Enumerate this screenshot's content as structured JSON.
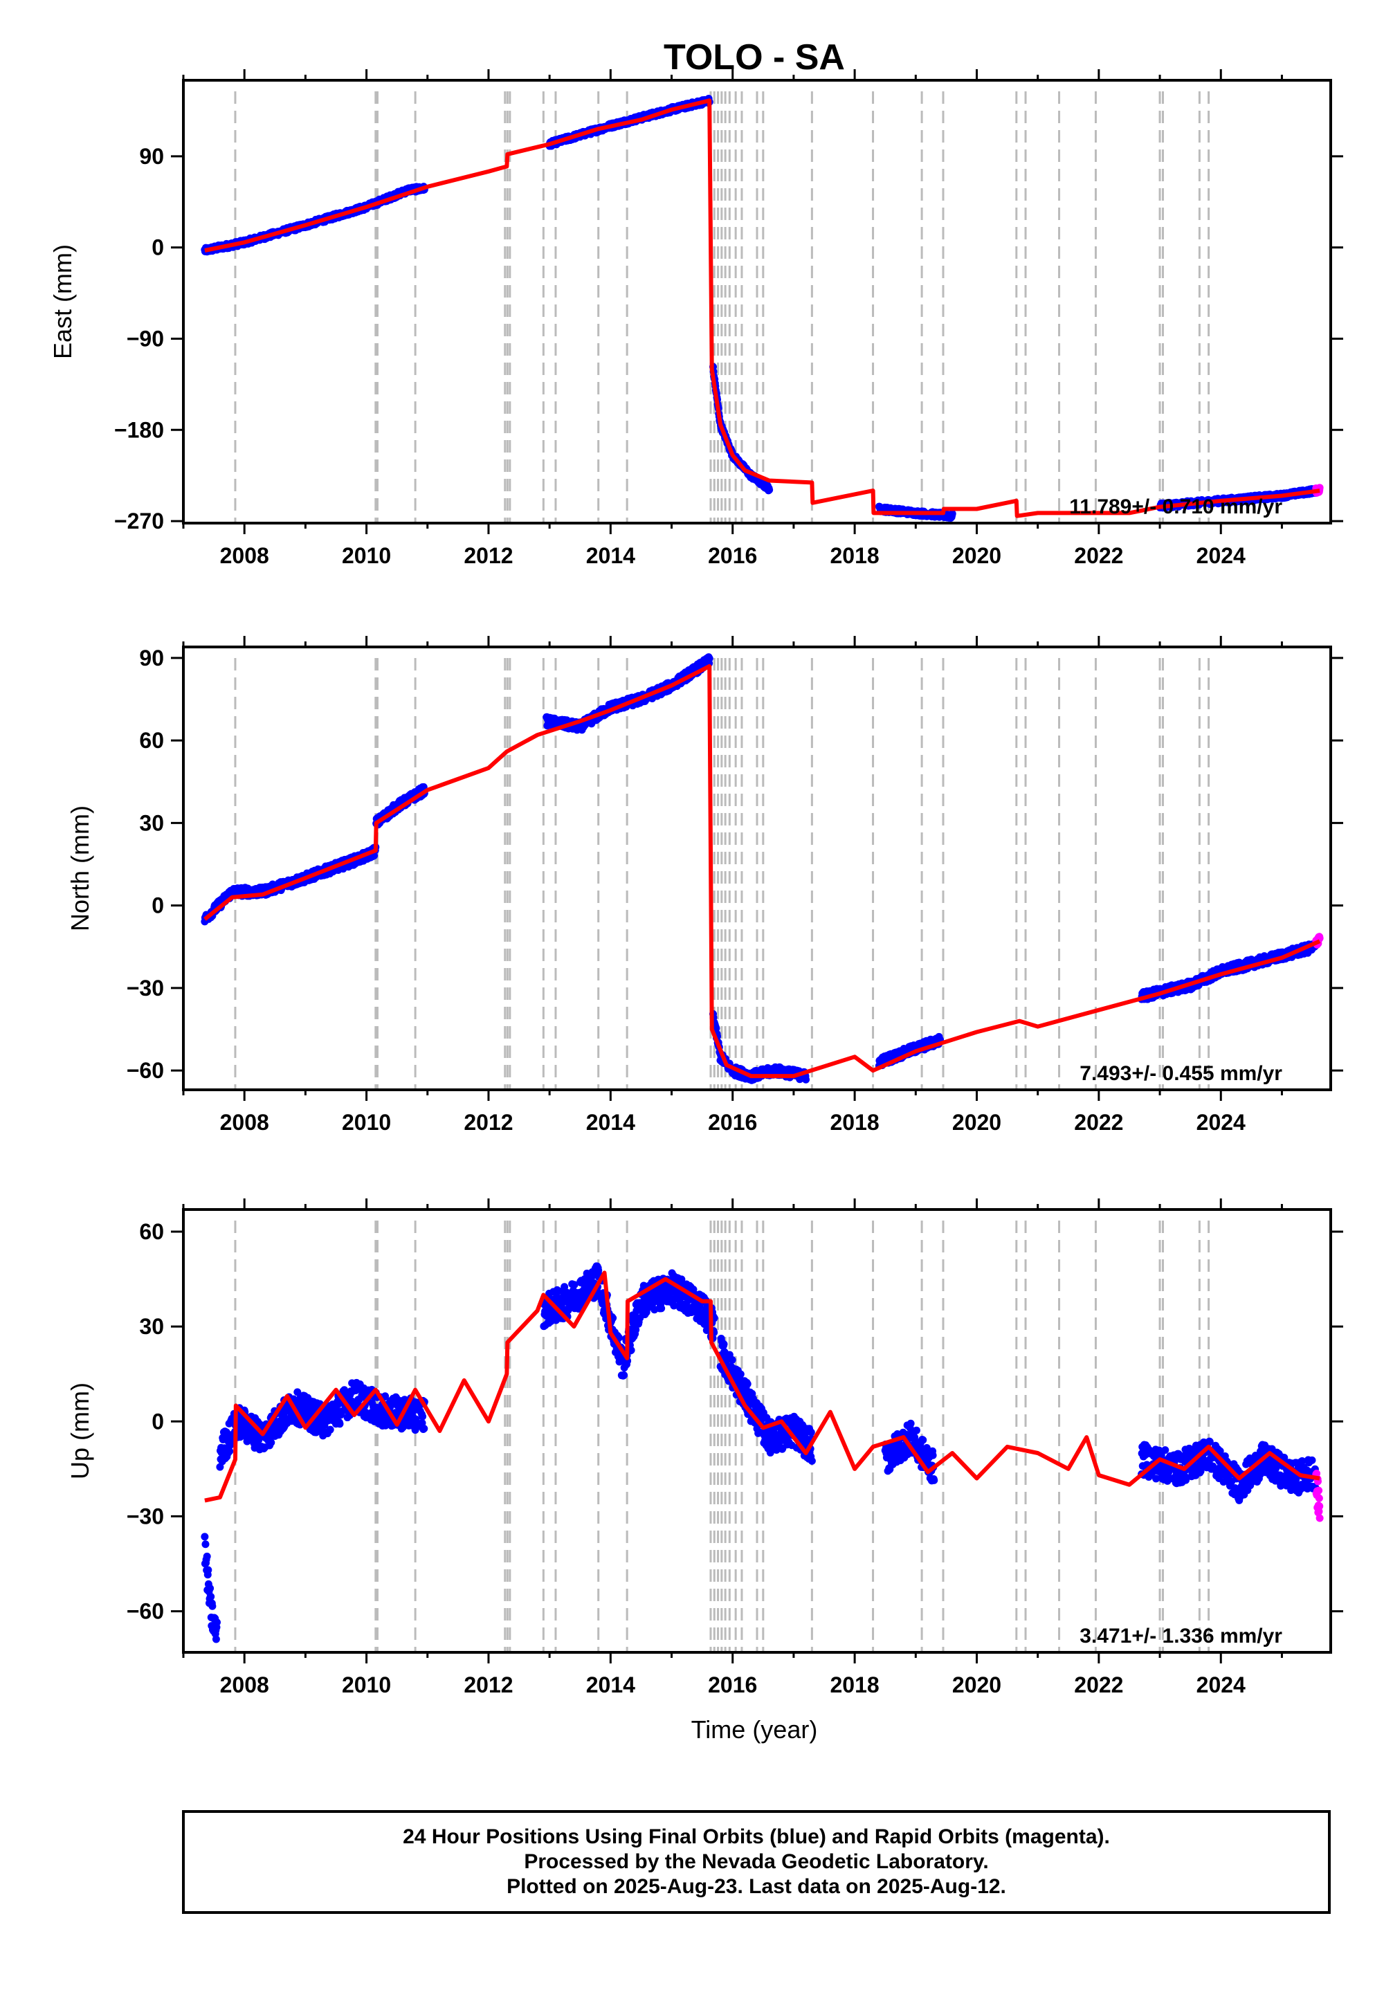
{
  "title": "TOLO - SA",
  "xlabel": "Time (year)",
  "footer": {
    "line1": "24 Hour Positions Using Final Orbits (blue) and Rapid Orbits (magenta).",
    "line2": "Processed by the Nevada Geodetic Laboratory.",
    "line3": "Plotted on 2025-Aug-23. Last data on 2025-Aug-12."
  },
  "colors": {
    "final_orbits": "#0000ff",
    "rapid_orbits": "#ff00ff",
    "model": "#ff0000",
    "event_lines": "#bbbbbb"
  },
  "event_lines_year": [
    2007.85,
    2010.15,
    2010.18,
    2010.8,
    2012.27,
    2012.31,
    2012.35,
    2012.9,
    2013.1,
    2013.8,
    2014.27,
    2015.64,
    2015.7,
    2015.76,
    2015.82,
    2015.88,
    2015.95,
    2016.05,
    2016.15,
    2016.4,
    2016.5,
    2017.3,
    2018.3,
    2019.1,
    2019.45,
    2020.65,
    2020.8,
    2021.35,
    2021.95,
    2023.0,
    2023.05,
    2023.65,
    2023.8
  ],
  "chart_data": [
    {
      "type": "scatter",
      "ylabel": "East (mm)",
      "xlim": [
        2007.0,
        2025.8
      ],
      "ylim": [
        -272,
        165
      ],
      "xticks": [
        2008,
        2010,
        2012,
        2014,
        2016,
        2018,
        2020,
        2022,
        2024
      ],
      "yticks": [
        90,
        0,
        -90,
        -180,
        -270
      ],
      "annotation": "11.789+/- 0.710 mm/yr",
      "series": [
        {
          "name": "Final Orbits",
          "color": "#0000ff",
          "segments": [
            {
              "x": [
                2007.35,
                2008.0,
                2009.0,
                2010.0,
                2010.7,
                2010.95
              ],
              "y": [
                -3,
                5,
                22,
                40,
                57,
                58
              ]
            },
            {
              "x": [
                2013.0,
                2014.0,
                2015.0,
                2015.62
              ],
              "y": [
                102,
                120,
                136,
                145
              ]
            },
            {
              "x": [
                2015.68,
                2015.8,
                2016.0,
                2016.3,
                2016.6
              ],
              "y": [
                -120,
                -175,
                -205,
                -225,
                -238
              ]
            },
            {
              "x": [
                2018.4,
                2019.0,
                2019.6
              ],
              "y": [
                -258,
                -262,
                -265
              ]
            },
            {
              "x": [
                2023.0,
                2024.0,
                2025.0,
                2025.55
              ],
              "y": [
                -255,
                -250,
                -245,
                -240
              ]
            }
          ]
        },
        {
          "name": "Rapid Orbits",
          "color": "#ff00ff",
          "segments": [
            {
              "x": [
                2025.56,
                2025.62
              ],
              "y": [
                -240,
                -239
              ]
            }
          ]
        },
        {
          "name": "Model",
          "color": "#ff0000",
          "x": [
            2007.35,
            2008.0,
            2009.0,
            2010.0,
            2011.0,
            2012.0,
            2012.3,
            2012.31,
            2013.0,
            2013.8,
            2014.5,
            2015.0,
            2015.62,
            2015.66,
            2015.8,
            2016.0,
            2016.2,
            2016.6,
            2017.3,
            2017.31,
            2018.3,
            2018.31,
            2019.0,
            2019.45,
            2019.46,
            2020.0,
            2020.65,
            2020.66,
            2021.0,
            2022.0,
            2022.5,
            2023.0,
            2024.0,
            2025.0,
            2025.62
          ],
          "y": [
            -3,
            5,
            22,
            40,
            60,
            75,
            80,
            92,
            102,
            117,
            126,
            136,
            145,
            -120,
            -175,
            -205,
            -220,
            -230,
            -232,
            -252,
            -240,
            -262,
            -262,
            -262,
            -258,
            -258,
            -250,
            -265,
            -262,
            -262,
            -262,
            -256,
            -250,
            -245,
            -240
          ]
        }
      ]
    },
    {
      "type": "scatter",
      "ylabel": "North (mm)",
      "xlim": [
        2007.0,
        2025.8
      ],
      "ylim": [
        -67,
        94
      ],
      "xticks": [
        2008,
        2010,
        2012,
        2014,
        2016,
        2018,
        2020,
        2022,
        2024
      ],
      "yticks": [
        90,
        60,
        30,
        0,
        -30,
        -60
      ],
      "annotation": "7.493+/- 0.455 mm/yr",
      "series": [
        {
          "name": "Final Orbits",
          "color": "#0000ff",
          "segments": [
            {
              "x": [
                2007.35,
                2007.8,
                2008.3,
                2009.0,
                2010.0,
                2010.15
              ],
              "y": [
                -5,
                5,
                5,
                10,
                18,
                20
              ]
            },
            {
              "x": [
                2010.16,
                2010.5,
                2010.95
              ],
              "y": [
                30,
                36,
                42
              ]
            },
            {
              "x": [
                2012.95,
                2013.5,
                2014.0,
                2014.5,
                2015.0,
                2015.62
              ],
              "y": [
                67,
                65,
                72,
                75,
                80,
                89
              ]
            },
            {
              "x": [
                2015.68,
                2015.8,
                2016.0,
                2016.3,
                2016.7,
                2017.2
              ],
              "y": [
                -40,
                -55,
                -60,
                -62,
                -60,
                -62
              ]
            },
            {
              "x": [
                2018.4,
                2019.0,
                2019.4
              ],
              "y": [
                -57,
                -52,
                -49
              ]
            },
            {
              "x": [
                2022.7,
                2023.5,
                2024.0,
                2024.7,
                2025.55
              ],
              "y": [
                -33,
                -29,
                -24,
                -20,
                -15
              ]
            }
          ]
        },
        {
          "name": "Rapid Orbits",
          "color": "#ff00ff",
          "segments": [
            {
              "x": [
                2025.56,
                2025.62
              ],
              "y": [
                -14,
                -11
              ]
            }
          ]
        },
        {
          "name": "Model",
          "color": "#ff0000",
          "x": [
            2007.35,
            2007.8,
            2008.3,
            2009.0,
            2010.15,
            2010.16,
            2011.0,
            2012.0,
            2012.3,
            2012.8,
            2013.5,
            2014.0,
            2015.0,
            2015.62,
            2015.66,
            2015.9,
            2016.3,
            2017.0,
            2018.0,
            2018.3,
            2019.0,
            2020.0,
            2020.7,
            2021.0,
            2022.0,
            2023.0,
            2024.0,
            2025.0,
            2025.62
          ],
          "y": [
            -5,
            3,
            4,
            10,
            20,
            30,
            42,
            50,
            56,
            62,
            67,
            71,
            80,
            87,
            -45,
            -58,
            -62,
            -62,
            -55,
            -60,
            -53,
            -46,
            -42,
            -44,
            -38,
            -32,
            -25,
            -19,
            -13
          ]
        }
      ]
    },
    {
      "type": "scatter",
      "ylabel": "Up (mm)",
      "xlim": [
        2007.0,
        2025.8
      ],
      "ylim": [
        -73,
        67
      ],
      "xticks": [
        2008,
        2010,
        2012,
        2014,
        2016,
        2018,
        2020,
        2022,
        2024
      ],
      "yticks": [
        60,
        30,
        0,
        -30,
        -60
      ],
      "annotation": "3.471+/- 1.336 mm/yr",
      "series": [
        {
          "name": "Final Orbits",
          "color": "#0000ff",
          "segments": [
            {
              "x": [
                2007.35,
                2007.45,
                2007.55
              ],
              "y": [
                -40,
                -60,
                -68
              ]
            },
            {
              "x": [
                2007.6,
                2007.9,
                2008.3,
                2008.8,
                2009.3,
                2009.8,
                2010.3,
                2010.95
              ],
              "y": [
                -10,
                0,
                -5,
                5,
                0,
                8,
                3,
                2
              ]
            },
            {
              "x": [
                2012.9,
                2013.3,
                2013.8,
                2014.2,
                2014.5,
                2015.0,
                2015.5,
                2015.7
              ],
              "y": [
                35,
                38,
                45,
                18,
                38,
                42,
                36,
                30
              ]
            },
            {
              "x": [
                2015.8,
                2016.0,
                2016.3,
                2016.6,
                2017.0,
                2017.3
              ],
              "y": [
                22,
                15,
                5,
                -5,
                -3,
                -8
              ]
            },
            {
              "x": [
                2018.5,
                2018.9,
                2019.3
              ],
              "y": [
                -12,
                -5,
                -15
              ]
            },
            {
              "x": [
                2022.7,
                2023.3,
                2023.8,
                2024.3,
                2024.7,
                2025.2,
                2025.55
              ],
              "y": [
                -12,
                -15,
                -10,
                -20,
                -12,
                -18,
                -16
              ]
            }
          ]
        },
        {
          "name": "Rapid Orbits",
          "color": "#ff00ff",
          "segments": [
            {
              "x": [
                2025.56,
                2025.6,
                2025.62
              ],
              "y": [
                -20,
                -25,
                -28
              ]
            }
          ]
        },
        {
          "name": "Model",
          "color": "#ff0000",
          "x": [
            2007.35,
            2007.6,
            2007.85,
            2007.86,
            2008.3,
            2008.7,
            2009.0,
            2009.5,
            2009.8,
            2010.15,
            2010.5,
            2010.8,
            2011.2,
            2011.6,
            2012.0,
            2012.3,
            2012.31,
            2012.8,
            2012.9,
            2013.4,
            2013.9,
            2014.0,
            2014.27,
            2014.28,
            2014.9,
            2015.5,
            2015.64,
            2015.65,
            2016.2,
            2016.5,
            2016.8,
            2017.2,
            2017.6,
            2018.0,
            2018.3,
            2018.8,
            2019.2,
            2019.6,
            2020.0,
            2020.5,
            2021.0,
            2021.5,
            2021.8,
            2022.0,
            2022.5,
            2023.0,
            2023.4,
            2023.8,
            2024.3,
            2024.8,
            2025.3,
            2025.62
          ],
          "y": [
            -25,
            -24,
            -12,
            5,
            -4,
            8,
            -2,
            10,
            2,
            10,
            -1,
            10,
            -3,
            13,
            0,
            15,
            25,
            35,
            40,
            30,
            47,
            28,
            20,
            38,
            45,
            38,
            38,
            25,
            5,
            -2,
            0,
            -10,
            3,
            -15,
            -8,
            -5,
            -16,
            -10,
            -18,
            -8,
            -10,
            -15,
            -5,
            -17,
            -20,
            -12,
            -15,
            -8,
            -18,
            -10,
            -17,
            -18
          ]
        }
      ]
    }
  ]
}
